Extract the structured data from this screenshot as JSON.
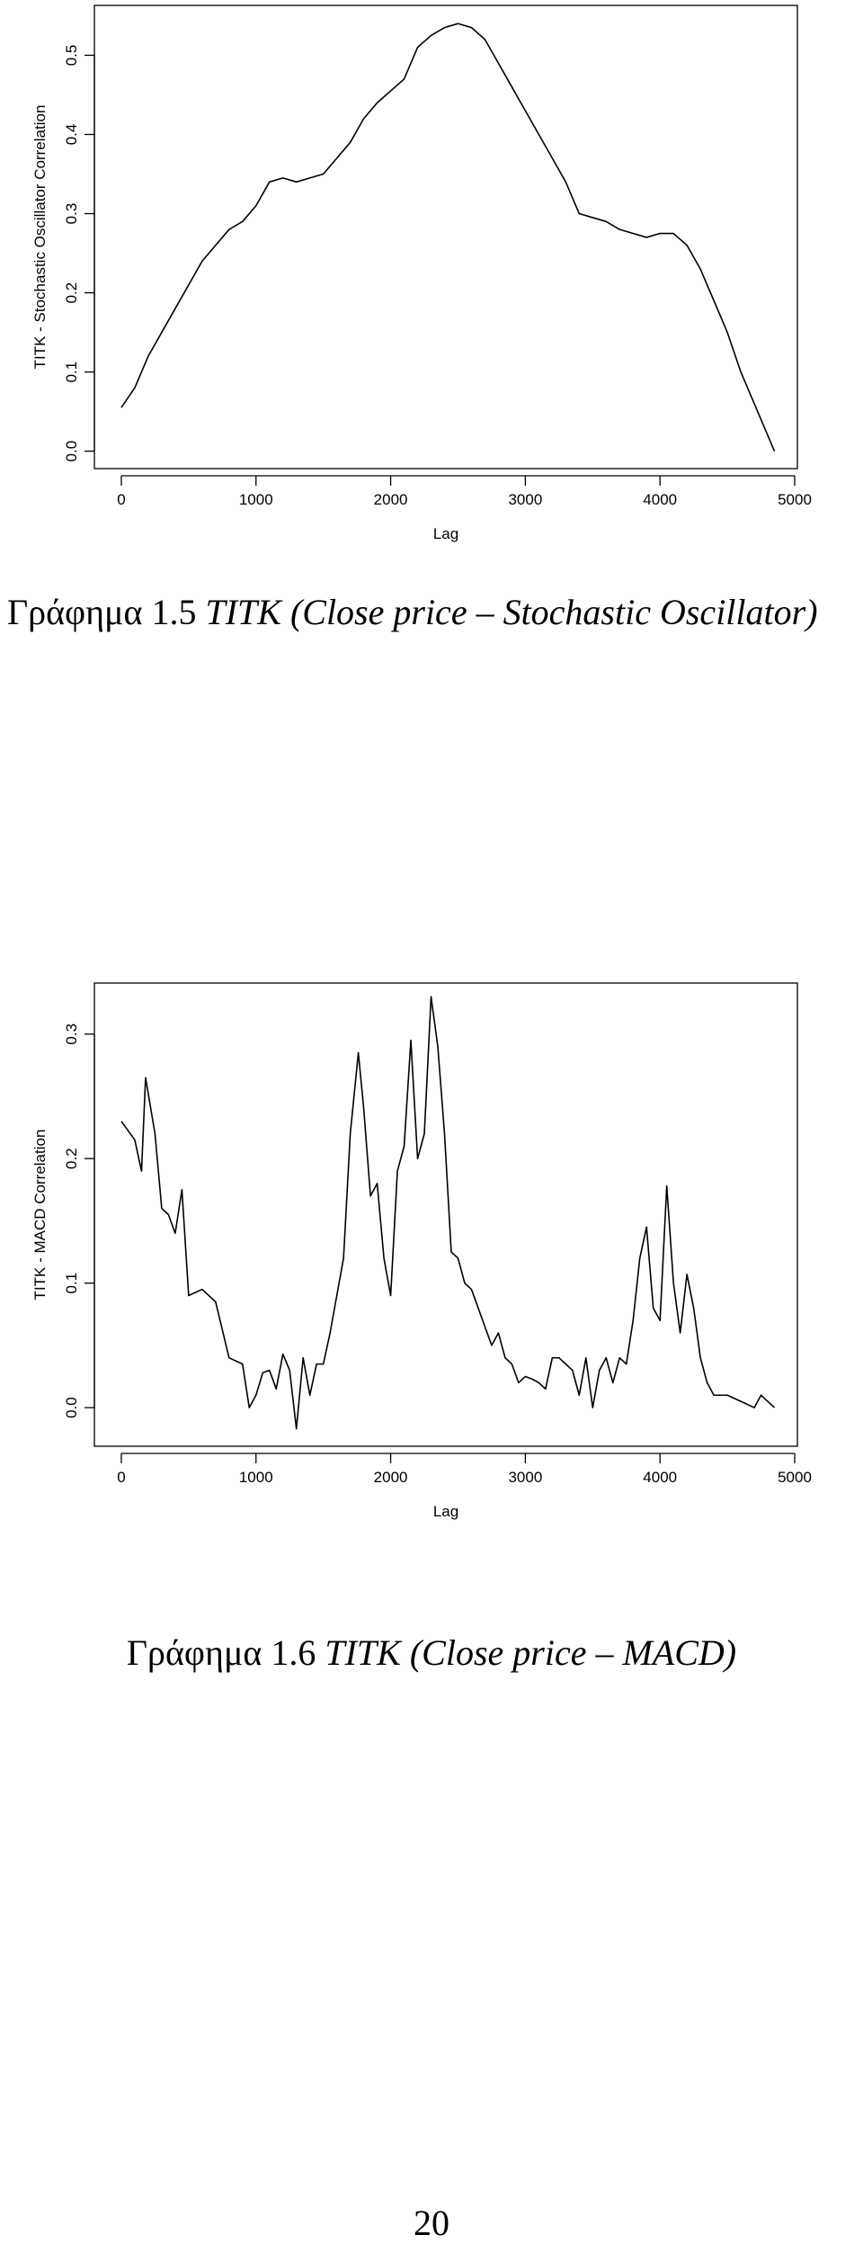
{
  "chart_data": [
    {
      "type": "line",
      "x_label": "Lag",
      "y_label": "TITK - Stochastic Oscillator Correlation",
      "color": "#000000",
      "x": [
        0,
        100,
        200,
        300,
        400,
        500,
        600,
        700,
        800,
        900,
        1000,
        1100,
        1200,
        1300,
        1400,
        1500,
        1600,
        1700,
        1800,
        1900,
        2000,
        2100,
        2200,
        2300,
        2400,
        2500,
        2600,
        2700,
        2800,
        2900,
        3000,
        3100,
        3200,
        3300,
        3400,
        3500,
        3600,
        3700,
        3800,
        3900,
        4000,
        4100,
        4200,
        4300,
        4400,
        4500,
        4600,
        4700,
        4800,
        4850
      ],
      "values": [
        0.055,
        0.08,
        0.12,
        0.15,
        0.18,
        0.21,
        0.24,
        0.26,
        0.28,
        0.29,
        0.31,
        0.34,
        0.345,
        0.34,
        0.345,
        0.35,
        0.37,
        0.39,
        0.42,
        0.44,
        0.455,
        0.47,
        0.51,
        0.525,
        0.535,
        0.54,
        0.535,
        0.52,
        0.49,
        0.46,
        0.43,
        0.4,
        0.37,
        0.34,
        0.3,
        0.295,
        0.29,
        0.28,
        0.275,
        0.27,
        0.275,
        0.275,
        0.26,
        0.23,
        0.19,
        0.15,
        0.1,
        0.06,
        0.02,
        0.0
      ],
      "xlim": [
        -200,
        5020
      ],
      "ylim": [
        -0.022,
        0.563
      ],
      "xticks": [
        0,
        1000,
        2000,
        3000,
        4000,
        5000
      ],
      "yticks": [
        {
          "value": 0,
          "label": "0.0"
        },
        0.1,
        0.2,
        0.3,
        0.4,
        0.5
      ]
    },
    {
      "type": "line",
      "x_label": "Lag",
      "y_label": "TITK - MACD Correlation",
      "color": "#000000",
      "x": [
        0,
        100,
        150,
        180,
        250,
        300,
        350,
        400,
        450,
        500,
        600,
        700,
        800,
        900,
        950,
        1000,
        1050,
        1100,
        1150,
        1200,
        1250,
        1300,
        1350,
        1400,
        1450,
        1500,
        1550,
        1600,
        1650,
        1700,
        1760,
        1800,
        1850,
        1900,
        1950,
        2000,
        2050,
        2100,
        2150,
        2200,
        2250,
        2300,
        2350,
        2400,
        2450,
        2500,
        2550,
        2600,
        2650,
        2700,
        2750,
        2800,
        2850,
        2900,
        2950,
        3000,
        3050,
        3100,
        3150,
        3200,
        3250,
        3300,
        3350,
        3400,
        3450,
        3500,
        3550,
        3600,
        3650,
        3700,
        3750,
        3800,
        3850,
        3900,
        3950,
        4000,
        4050,
        4100,
        4150,
        4200,
        4250,
        4300,
        4350,
        4400,
        4500,
        4600,
        4700,
        4750,
        4800,
        4850
      ],
      "values": [
        0.23,
        0.215,
        0.19,
        0.265,
        0.22,
        0.16,
        0.155,
        0.14,
        0.175,
        0.09,
        0.095,
        0.085,
        0.04,
        0.035,
        0.0,
        0.01,
        0.028,
        0.03,
        0.015,
        0.043,
        0.03,
        -0.017,
        0.04,
        0.01,
        0.035,
        0.035,
        0.06,
        0.09,
        0.12,
        0.22,
        0.285,
        0.24,
        0.17,
        0.18,
        0.12,
        0.09,
        0.19,
        0.21,
        0.295,
        0.2,
        0.22,
        0.33,
        0.29,
        0.22,
        0.125,
        0.12,
        0.1,
        0.095,
        0.08,
        0.065,
        0.05,
        0.06,
        0.04,
        0.035,
        0.02,
        0.025,
        0.023,
        0.02,
        0.015,
        0.04,
        0.04,
        0.035,
        0.03,
        0.01,
        0.04,
        0.0,
        0.03,
        0.04,
        0.02,
        0.04,
        0.035,
        0.07,
        0.12,
        0.145,
        0.08,
        0.07,
        0.178,
        0.1,
        0.06,
        0.107,
        0.08,
        0.04,
        0.02,
        0.01,
        0.01,
        0.005,
        0.0,
        0.01,
        0.005,
        0.0
      ],
      "xlim": [
        -200,
        5020
      ],
      "ylim": [
        -0.031,
        0.341
      ],
      "xticks": [
        0,
        1000,
        2000,
        3000,
        4000,
        5000
      ],
      "yticks": [
        {
          "value": 0,
          "label": "0.0"
        },
        0.1,
        0.2,
        0.3
      ]
    }
  ],
  "captions": [
    {
      "label": "Γράφημα 1.5",
      "text": "TITK (Close price – Stochastic Oscillator)"
    },
    {
      "label": "Γράφημα 1.6",
      "text": "TITK (Close price – MACD)"
    }
  ],
  "page_number": "20"
}
